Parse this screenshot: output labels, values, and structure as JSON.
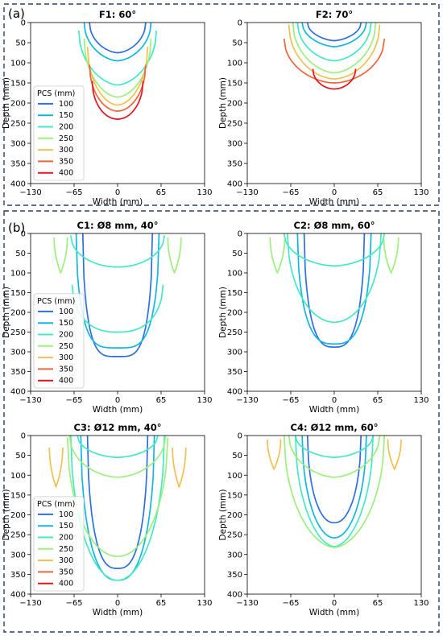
{
  "panels": [
    {
      "label": "(a)"
    },
    {
      "label": "(b)"
    }
  ],
  "pcs_colors": {
    "100": "#2e6fe0",
    "150": "#12b7e0",
    "200": "#44e8c4",
    "250": "#9bf07e",
    "300": "#f2c050",
    "350": "#f0643a",
    "400": "#e3141c"
  },
  "chart_data": [
    {
      "type": "line",
      "title": "F1: 60°",
      "xlabel": "Width (mm)",
      "ylabel": "Depth (mm)",
      "xlim": [
        -130,
        130
      ],
      "ylim": [
        400,
        0
      ],
      "xticks": [
        -130,
        -65,
        0,
        65,
        130
      ],
      "yticks": [
        0,
        50,
        100,
        150,
        200,
        250,
        300,
        350,
        400
      ],
      "legend": {
        "title": "PCS (mm)",
        "position": "lower-left",
        "entries": [
          "100",
          "150",
          "200",
          "250",
          "300",
          "350",
          "400"
        ]
      },
      "series": [
        {
          "name": "100",
          "shape": [
            {
              "top": 0,
              "depth": 75,
              "half_width": 42,
              "power": 1.7
            }
          ]
        },
        {
          "name": "150",
          "shape": [
            {
              "top": 0,
              "depth": 95,
              "half_width": 50,
              "power": 1.7
            }
          ]
        },
        {
          "name": "200",
          "shape": [
            {
              "top": 20,
              "depth": 155,
              "half_width": 58,
              "power": 1.7
            }
          ]
        },
        {
          "name": "250",
          "shape": [
            {
              "top": 40,
              "depth": 185,
              "half_width": 50,
              "power": 1.8
            }
          ]
        },
        {
          "name": "300",
          "shape": [
            {
              "top": 60,
              "depth": 205,
              "half_width": 45,
              "power": 1.8
            }
          ]
        },
        {
          "name": "350",
          "shape": [
            {
              "top": 105,
              "depth": 220,
              "half_width": 42,
              "power": 1.9
            }
          ]
        },
        {
          "name": "400",
          "shape": [
            {
              "top": 145,
              "depth": 240,
              "half_width": 38,
              "power": 2.0
            }
          ]
        }
      ]
    },
    {
      "type": "line",
      "title": "F2: 70°",
      "xlabel": "Width (mm)",
      "ylabel": "Depth (mm)",
      "xlim": [
        -130,
        130
      ],
      "ylim": [
        400,
        0
      ],
      "xticks": [
        -130,
        -65,
        0,
        65,
        130
      ],
      "yticks": [
        0,
        50,
        100,
        150,
        200,
        250,
        300,
        350,
        400
      ],
      "series": [
        {
          "name": "100",
          "shape": [
            {
              "top": 0,
              "depth": 45,
              "half_width": 40,
              "power": 1.6
            }
          ]
        },
        {
          "name": "150",
          "shape": [
            {
              "top": 0,
              "depth": 60,
              "half_width": 48,
              "power": 1.6
            }
          ]
        },
        {
          "name": "200",
          "shape": [
            {
              "top": 0,
              "depth": 95,
              "half_width": 55,
              "power": 1.7
            }
          ]
        },
        {
          "name": "250",
          "shape": [
            {
              "top": 0,
              "depth": 125,
              "half_width": 62,
              "power": 1.7
            }
          ]
        },
        {
          "name": "300",
          "shape": [
            {
              "top": 5,
              "depth": 140,
              "half_width": 68,
              "power": 1.8
            }
          ]
        },
        {
          "name": "350",
          "shape": [
            {
              "top": 40,
              "depth": 150,
              "half_width": 75,
              "power": 1.8
            }
          ]
        },
        {
          "name": "400",
          "shape": [
            {
              "top": 115,
              "depth": 165,
              "half_width": 32,
              "power": 1.9
            }
          ]
        }
      ]
    },
    {
      "type": "line",
      "title": "C1: Ø8 mm, 40°",
      "xlabel": "Width (mm)",
      "ylabel": "Depth (mm)",
      "xlim": [
        -130,
        130
      ],
      "ylim": [
        400,
        0
      ],
      "xticks": [
        -130,
        -65,
        0,
        65,
        130
      ],
      "yticks": [
        0,
        50,
        100,
        150,
        200,
        250,
        300,
        350,
        400
      ],
      "legend": {
        "title": "PCS (mm)",
        "position": "lower-left",
        "entries": [
          "100",
          "150",
          "200",
          "250",
          "300",
          "350",
          "400"
        ]
      },
      "series": [
        {
          "name": "100",
          "shape": [
            {
              "top": 0,
              "depth": 312,
              "half_width": 52,
              "power": 4.0
            }
          ]
        },
        {
          "name": "150",
          "shape": [
            {
              "top": 0,
              "depth": 290,
              "half_width": 62,
              "power": 4.0
            }
          ]
        },
        {
          "name": "200",
          "shape": [
            {
              "top": 5,
              "depth": 85,
              "half_width": 70,
              "power": 2.0
            },
            {
              "top": 130,
              "depth": 250,
              "half_width": 68,
              "power": 2.5
            }
          ]
        },
        {
          "name": "250",
          "shape": [
            {
              "top": 10,
              "depth": 100,
              "half_width": 10,
              "power": 1.0,
              "center": -85
            },
            {
              "top": 10,
              "depth": 100,
              "half_width": 10,
              "power": 1.0,
              "center": 85
            }
          ]
        },
        {
          "name": "300",
          "shape": []
        },
        {
          "name": "350",
          "shape": []
        },
        {
          "name": "400",
          "shape": []
        }
      ]
    },
    {
      "type": "line",
      "title": "C2: Ø8 mm, 60°",
      "xlabel": "Width (mm)",
      "ylabel": "Depth (mm)",
      "xlim": [
        -130,
        130
      ],
      "ylim": [
        400,
        0
      ],
      "xticks": [
        -130,
        -65,
        0,
        65,
        130
      ],
      "yticks": [
        0,
        50,
        100,
        150,
        200,
        250,
        300,
        350,
        400
      ],
      "series": [
        {
          "name": "100",
          "shape": [
            {
              "top": 0,
              "depth": 288,
              "half_width": 45,
              "power": 3.0
            }
          ]
        },
        {
          "name": "150",
          "shape": [
            {
              "top": 0,
              "depth": 280,
              "half_width": 55,
              "power": 3.0
            }
          ]
        },
        {
          "name": "200",
          "shape": [
            {
              "top": 0,
              "depth": 82,
              "half_width": 75,
              "power": 1.8
            },
            {
              "top": 0,
              "depth": 225,
              "half_width": 70,
              "power": 2.0
            }
          ]
        },
        {
          "name": "250",
          "shape": [
            {
              "top": 10,
              "depth": 100,
              "half_width": 11,
              "power": 1.0,
              "center": -85
            },
            {
              "top": 10,
              "depth": 100,
              "half_width": 11,
              "power": 1.0,
              "center": 85
            }
          ]
        },
        {
          "name": "300",
          "shape": []
        },
        {
          "name": "350",
          "shape": []
        },
        {
          "name": "400",
          "shape": []
        }
      ]
    },
    {
      "type": "line",
      "title": "C3: Ø12 mm, 40°",
      "xlabel": "Width (mm)",
      "ylabel": "Depth (mm)",
      "xlim": [
        -130,
        130
      ],
      "ylim": [
        400,
        0
      ],
      "xticks": [
        -130,
        -65,
        0,
        65,
        130
      ],
      "yticks": [
        0,
        50,
        100,
        150,
        200,
        250,
        300,
        350,
        400
      ],
      "legend": {
        "title": "PCS (mm)",
        "position": "lower-left",
        "entries": [
          "100",
          "150",
          "200",
          "250",
          "300",
          "350",
          "400"
        ]
      },
      "series": [
        {
          "name": "100",
          "shape": [
            {
              "top": 0,
              "depth": 335,
              "half_width": 45,
              "power": 2.8
            }
          ]
        },
        {
          "name": "150",
          "shape": [
            {
              "top": 0,
              "depth": 365,
              "half_width": 55,
              "power": 2.5
            }
          ]
        },
        {
          "name": "200",
          "shape": [
            {
              "top": 0,
              "depth": 55,
              "half_width": 60,
              "power": 1.8
            },
            {
              "top": 0,
              "depth": 365,
              "half_width": 70,
              "power": 2.0
            }
          ]
        },
        {
          "name": "250",
          "shape": [
            {
              "top": 0,
              "depth": 105,
              "half_width": 72,
              "power": 1.8
            },
            {
              "top": 5,
              "depth": 305,
              "half_width": 75,
              "power": 2.0
            }
          ]
        },
        {
          "name": "300",
          "shape": [
            {
              "top": 30,
              "depth": 130,
              "half_width": 10,
              "power": 1.0,
              "center": -92
            },
            {
              "top": 30,
              "depth": 130,
              "half_width": 10,
              "power": 1.0,
              "center": 92
            }
          ]
        },
        {
          "name": "350",
          "shape": []
        },
        {
          "name": "400",
          "shape": []
        }
      ]
    },
    {
      "type": "line",
      "title": "C4: Ø12 mm, 60°",
      "xlabel": "Width (mm)",
      "ylabel": "Depth (mm)",
      "xlim": [
        -130,
        130
      ],
      "ylim": [
        400,
        0
      ],
      "xticks": [
        -130,
        -65,
        0,
        65,
        130
      ],
      "yticks": [
        0,
        50,
        100,
        150,
        200,
        250,
        300,
        350,
        400
      ],
      "series": [
        {
          "name": "100",
          "shape": [
            {
              "top": 0,
              "depth": 220,
              "half_width": 40,
              "power": 2.2
            }
          ]
        },
        {
          "name": "150",
          "shape": [
            {
              "top": 0,
              "depth": 258,
              "half_width": 48,
              "power": 2.0
            }
          ]
        },
        {
          "name": "200",
          "shape": [
            {
              "top": 0,
              "depth": 55,
              "half_width": 58,
              "power": 1.7
            },
            {
              "top": 0,
              "depth": 280,
              "half_width": 58,
              "power": 1.8
            }
          ]
        },
        {
          "name": "250",
          "shape": [
            {
              "top": 0,
              "depth": 105,
              "half_width": 68,
              "power": 1.7
            },
            {
              "top": 0,
              "depth": 282,
              "half_width": 75,
              "power": 1.8
            }
          ]
        },
        {
          "name": "300",
          "shape": [
            {
              "top": 10,
              "depth": 85,
              "half_width": 10,
              "power": 1.0,
              "center": -90
            },
            {
              "top": 10,
              "depth": 85,
              "half_width": 10,
              "power": 1.0,
              "center": 90
            }
          ]
        },
        {
          "name": "350",
          "shape": []
        },
        {
          "name": "400",
          "shape": []
        }
      ]
    }
  ]
}
